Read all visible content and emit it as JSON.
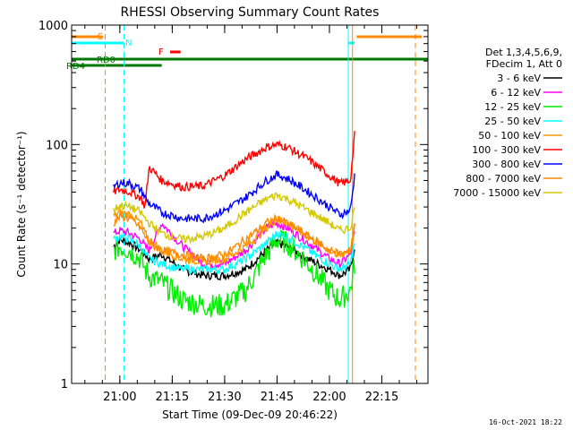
{
  "chart_data": {
    "type": "line",
    "title": "RHESSI Observing Summary Count Rates",
    "ylabel": "Count Rate (s⁻¹ detector⁻¹)",
    "xlabel": "Start Time (09-Dec-09 20:46:22)",
    "yscale": "log",
    "ylim": [
      1,
      1000
    ],
    "xlim_minutes": [
      20.77,
      22.47
    ],
    "x_ticks": [
      "21:00",
      "21:15",
      "21:30",
      "21:45",
      "22:00",
      "22:15"
    ],
    "y_ticks": [
      "1",
      "10",
      "100",
      "1000"
    ],
    "legend_placement": "right",
    "legend_header": [
      "Det 1,3,4,5,6,9,",
      "FDecim 1, Att 0"
    ],
    "timestamp": "16-Oct-2021 18:22",
    "x_minutes": [
      20.97,
      21.0,
      21.05,
      21.1,
      21.12,
      21.14,
      21.2,
      21.3,
      21.4,
      21.5,
      21.6,
      21.7,
      21.75,
      21.8,
      21.9,
      22.0,
      22.05,
      22.1,
      22.12
    ],
    "series": [
      {
        "name": "3 - 6 keV",
        "color": "#000000",
        "values": [
          14,
          16,
          15,
          13,
          12,
          11,
          12,
          9,
          8,
          8,
          9,
          13,
          15,
          14,
          11,
          9,
          8,
          9,
          14
        ]
      },
      {
        "name": "6 - 12 keV",
        "color": "#ff00ff",
        "values": [
          18,
          19,
          18,
          16,
          14,
          13,
          22,
          14,
          10,
          10,
          13,
          20,
          22,
          20,
          15,
          11,
          10,
          12,
          18
        ]
      },
      {
        "name": "12 - 25 keV",
        "color": "#00ee00",
        "values": [
          13,
          14,
          13,
          11,
          9,
          8,
          7,
          5,
          4.5,
          4.5,
          6,
          12,
          16,
          15,
          10,
          6,
          5,
          6,
          10
        ]
      },
      {
        "name": "25 - 50 keV",
        "color": "#00ffff",
        "values": [
          16,
          17,
          16,
          14,
          12,
          11,
          10,
          9,
          9,
          9,
          11,
          15,
          18,
          17,
          13,
          10,
          9,
          10,
          15
        ]
      },
      {
        "name": "50 - 100 keV",
        "color": "#ff9900",
        "values": [
          25,
          27,
          26,
          22,
          18,
          16,
          13,
          11,
          10.5,
          11,
          14,
          20,
          24,
          22,
          17,
          13,
          12,
          13,
          20
        ]
      },
      {
        "name": "100 - 300 keV",
        "color": "#ff0000",
        "values": [
          40,
          42,
          40,
          36,
          30,
          65,
          50,
          44,
          45,
          55,
          75,
          95,
          100,
          95,
          75,
          55,
          47,
          50,
          120
        ]
      },
      {
        "name": "300 - 800 keV",
        "color": "#0000ff",
        "values": [
          44,
          48,
          47,
          42,
          36,
          32,
          27,
          24,
          24,
          28,
          36,
          50,
          56,
          52,
          40,
          30,
          26,
          28,
          55
        ]
      },
      {
        "name": "800 - 7000 keV",
        "color": "#ff8800",
        "values": [
          22,
          25,
          24,
          20,
          17,
          15,
          13,
          12,
          11,
          12,
          16,
          22,
          24,
          22,
          17,
          13,
          12,
          13,
          22
        ]
      },
      {
        "name": "7000 - 15000 keV",
        "color": "#d4c800",
        "values": [
          28,
          31,
          30,
          27,
          24,
          22,
          18,
          16,
          17,
          20,
          27,
          35,
          38,
          35,
          28,
          22,
          19,
          20,
          30
        ]
      }
    ],
    "flag_labels": {
      "S": "S",
      "N": "N",
      "F": "F",
      "RD0": "RD0",
      "RD4": "RD4"
    }
  }
}
